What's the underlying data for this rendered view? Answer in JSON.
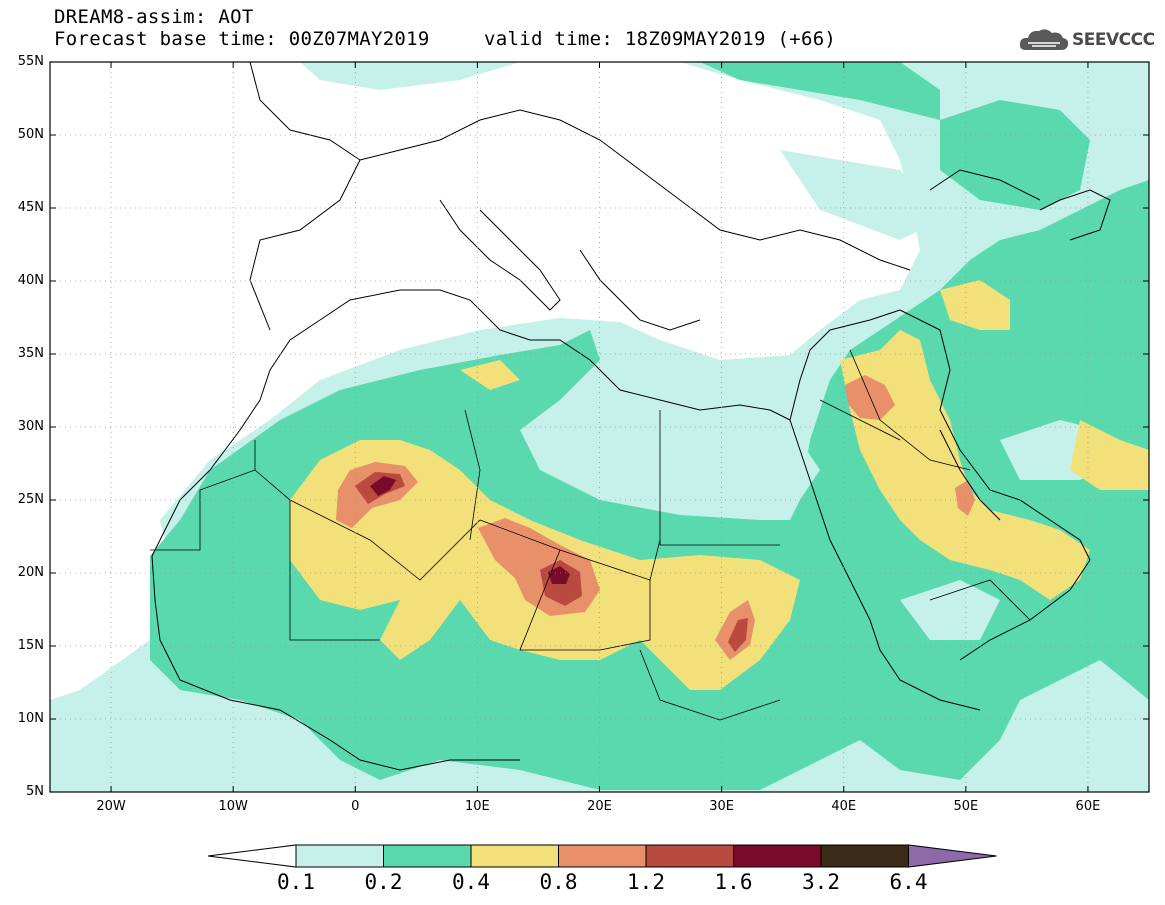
{
  "header": {
    "title": "DREAM8-assim: AOT",
    "base_time": "Forecast base time: 00Z07MAY2019",
    "valid_time": "valid time: 18Z09MAY2019 (+66)",
    "logo_text": "SEEVCCC",
    "logo_icon": "cloud-icon"
  },
  "map": {
    "lon_range": [
      -25,
      65
    ],
    "lat_range": [
      5,
      55
    ],
    "lat_ticks": [
      "55N",
      "50N",
      "45N",
      "40N",
      "35N",
      "30N",
      "25N",
      "20N",
      "15N",
      "10N",
      "5N"
    ],
    "lon_ticks": [
      "20W",
      "10W",
      "0",
      "10E",
      "20E",
      "30E",
      "40E",
      "50E",
      "60E"
    ]
  },
  "colorbar": {
    "labels": [
      "0.1",
      "0.2",
      "0.4",
      "0.8",
      "1.2",
      "1.6",
      "3.2",
      "6.4"
    ],
    "colors": [
      "#c6f0ea",
      "#5ad8ae",
      "#f2e07a",
      "#e8906a",
      "#b84a40",
      "#7a0a2a",
      "#3a2a18",
      "#8c6aa8"
    ]
  }
}
